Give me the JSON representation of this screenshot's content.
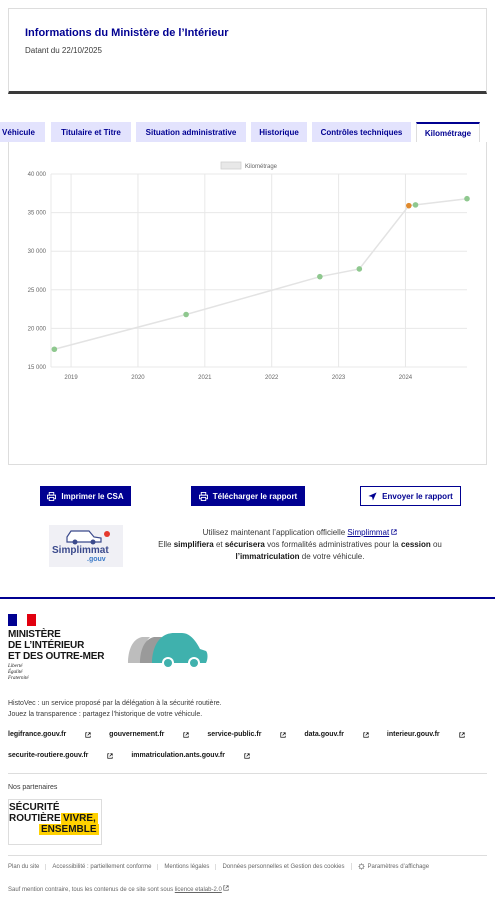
{
  "info": {
    "title": "Informations du Ministère de l’Intérieur",
    "date": "Datant du 22/10/2025"
  },
  "tabs": [
    {
      "label": "Véhicule",
      "active": false
    },
    {
      "label": "Titulaire et Titre",
      "active": false
    },
    {
      "label": "Situation administrative",
      "active": false
    },
    {
      "label": "Historique",
      "active": false
    },
    {
      "label": "Contrôles techniques",
      "active": false
    },
    {
      "label": "Kilométrage",
      "active": true
    }
  ],
  "chart_data": {
    "type": "line",
    "series": [
      {
        "name": "Kilométrage",
        "points": [
          {
            "x": 2018.75,
            "y": 17300
          },
          {
            "x": 2020.72,
            "y": 21800
          },
          {
            "x": 2022.72,
            "y": 26700
          },
          {
            "x": 2023.31,
            "y": 27700
          },
          {
            "x": 2024.05,
            "y": 35900,
            "highlight": true
          },
          {
            "x": 2024.15,
            "y": 36000
          },
          {
            "x": 2024.92,
            "y": 36800
          }
        ]
      }
    ],
    "xticks": [
      "2019",
      "2020",
      "2021",
      "2022",
      "2023",
      "2024"
    ],
    "yticks": [
      "15 000",
      "20 000",
      "25 000",
      "30 000",
      "35 000",
      "40 000"
    ],
    "xlim": [
      2018.7,
      2024.92
    ],
    "ylim": [
      15000,
      40000
    ],
    "grid": true,
    "legend": "top-center",
    "colors": {
      "line": "#e3e3e3",
      "point": "#8fc88f",
      "highlight": "#e08a2e",
      "grid": "#e8e8e8"
    }
  },
  "actions": {
    "print": "Imprimer le CSA",
    "download": "Télécharger le rapport",
    "send": "Envoyer le rapport"
  },
  "simplimmat": {
    "logo_text": "Simplimmat",
    "logo_suffix": ".gouv",
    "line1_pre": "Utilisez maintenant l’application officielle",
    "line1_link": "Simplimmat",
    "line2_a": "Elle",
    "line2_b": "simplifiera",
    "line2_c": "et",
    "line2_d": "sécurisera",
    "line2_e": "vos formalités administratives pour la",
    "line2_f": "cession",
    "line2_g": "ou",
    "line3_a": "l’immatriculation",
    "line3_b": "de votre véhicule."
  },
  "footer": {
    "ministry_lines": [
      "MINISTÈRE",
      "DE L’INTÉRIEUR",
      "ET DES OUTRE-MER"
    ],
    "devise": [
      "Liberté",
      "Égalité",
      "Fraternité"
    ],
    "desc_1": "HistoVec : un service proposé par la délégation à la sécurité routière.",
    "desc_2": "Jouez la transparence : partagez l’historique de votre véhicule.",
    "links_row1": [
      "legifrance.gouv.fr",
      "gouvernement.fr",
      "service-public.fr",
      "data.gouv.fr",
      "interieur.gouv.fr"
    ],
    "links_row2": [
      "securite-routiere.gouv.fr",
      "immatriculation.ants.gouv.fr"
    ],
    "partners_label": "Nos partenaires",
    "partner_logo": {
      "line1": "SÉCURITÉ",
      "line2": "ROUTIÈRE",
      "yellow1": "VIVRE,",
      "yellow2": "ENSEMBLE"
    },
    "bottom_links": [
      "Plan du site",
      "Accessibilité : partiellement conforme",
      "Mentions légales",
      "Données personnelles et Gestion des cookies",
      "Paramètres d’affichage"
    ],
    "license_pre": "Sauf mention contraire, tous les contenus de ce site sont sous",
    "license_link": "licence etalab-2.0"
  }
}
